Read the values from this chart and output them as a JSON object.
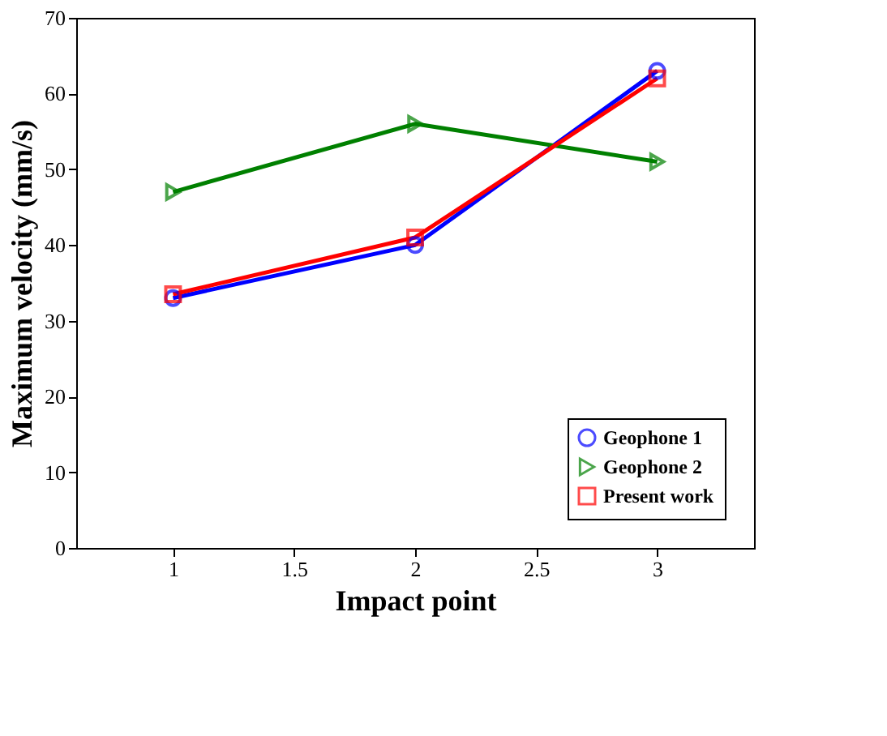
{
  "chart_data": {
    "type": "line",
    "xlabel": "Impact point",
    "ylabel": "Maximum velocity (mm/s)",
    "x": [
      1,
      2,
      3
    ],
    "series": [
      {
        "name": "Geophone 1",
        "color": "#0000ff",
        "marker": "circle",
        "values": [
          33,
          40,
          63
        ]
      },
      {
        "name": "Geophone 2",
        "color": "#008000",
        "marker": "triangle",
        "values": [
          47,
          56,
          51
        ]
      },
      {
        "name": "Present work",
        "color": "#ff0000",
        "marker": "square",
        "values": [
          33.5,
          41,
          62
        ]
      }
    ],
    "xlim": [
      0.6,
      3.4
    ],
    "xticks": [
      1,
      1.5,
      2,
      2.5,
      3
    ],
    "ylim": [
      0,
      70
    ],
    "yticks": [
      0,
      10,
      20,
      30,
      40,
      50,
      60,
      70
    ],
    "grid": false,
    "legend": "bottom right",
    "line_style": "solid"
  }
}
